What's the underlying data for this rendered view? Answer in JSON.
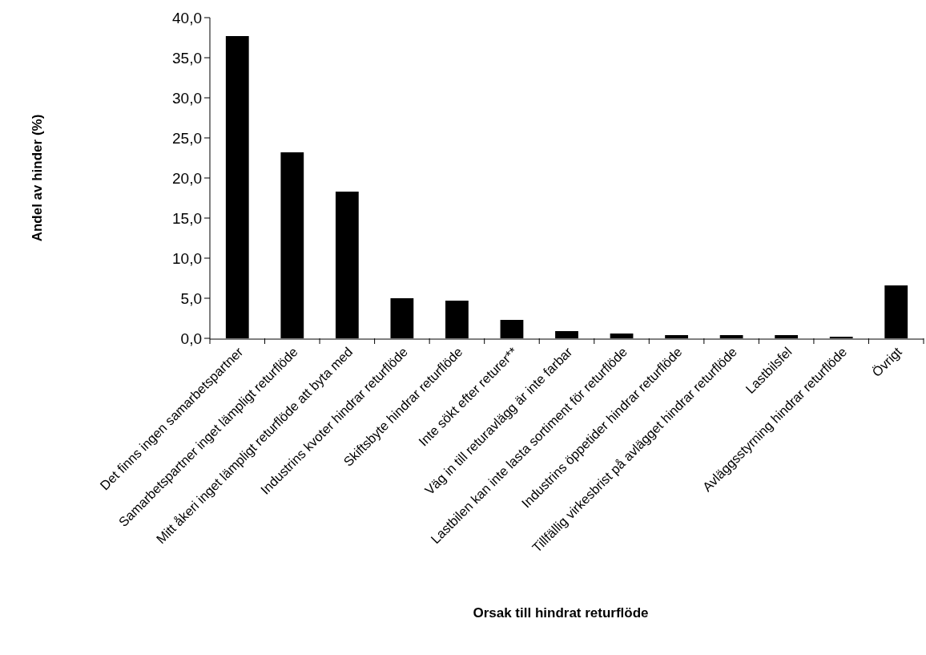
{
  "chart_data": {
    "type": "bar",
    "xlabel": "Orsak till hindrat returflöde",
    "ylabel": "Andel av hinder (%)",
    "categories": [
      "Det finns ingen samarbetspartner",
      "Samarbetspartner inget lämpligt returflöde",
      "Mitt åkeri inget lämpligt returflöde att byta med",
      "Industrins kvoter hindrar returflöde",
      "Skiftsbyte hindrar returflöde",
      "Inte sökt efter returer**",
      "Väg in till returavlägg är inte farbar",
      "Lastbilen kan inte lasta sortiment för returflöde",
      "Industrins öppetider hindrar returflöde",
      "Tillfällig virkesbrist på avlägget hindrar returflöde",
      "Lastbilsfel",
      "Avläggsstyrning hindrar returflöde",
      "Övrigt"
    ],
    "values": [
      37.7,
      23.2,
      18.3,
      5.0,
      4.7,
      2.3,
      0.9,
      0.6,
      0.4,
      0.4,
      0.4,
      0.2,
      6.6
    ],
    "color": "#000000",
    "ylim": [
      0,
      40
    ],
    "yticks": [
      {
        "value": 0,
        "label": "0,0"
      },
      {
        "value": 5,
        "label": "5,0"
      },
      {
        "value": 10,
        "label": "10,0"
      },
      {
        "value": 15,
        "label": "15,0"
      },
      {
        "value": 20,
        "label": "20,0"
      },
      {
        "value": 25,
        "label": "25,0"
      },
      {
        "value": 30,
        "label": "30,0"
      },
      {
        "value": 35,
        "label": "35,0"
      },
      {
        "value": 40,
        "label": "40,0"
      }
    ]
  }
}
